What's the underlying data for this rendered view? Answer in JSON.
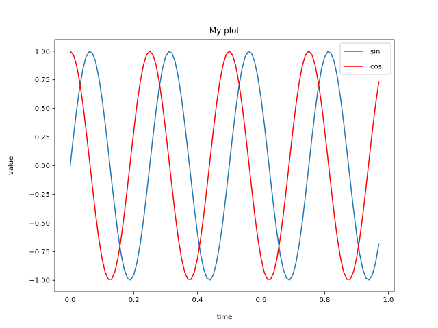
{
  "chart_data": {
    "type": "line",
    "title": "My plot",
    "xlabel": "time",
    "ylabel": "value",
    "xlim": [
      -0.0485,
      1.0185
    ],
    "ylim": [
      -1.1,
      1.1
    ],
    "xticks": [
      0.0,
      0.2,
      0.4,
      0.6,
      0.8,
      1.0
    ],
    "xtick_labels": [
      "0.0",
      "0.2",
      "0.4",
      "0.6",
      "0.8",
      "1.0"
    ],
    "yticks": [
      -1.0,
      -0.75,
      -0.5,
      -0.25,
      0.0,
      0.25,
      0.5,
      0.75,
      1.0
    ],
    "ytick_labels": [
      "−1.00",
      "−0.75",
      "−0.50",
      "−0.25",
      "0.00",
      "0.25",
      "0.50",
      "0.75",
      "1.00"
    ],
    "grid": false,
    "legend_position": "upper right",
    "x": [
      0.0,
      0.01,
      0.02,
      0.03,
      0.04,
      0.05,
      0.06,
      0.07,
      0.08,
      0.09,
      0.1,
      0.11,
      0.12,
      0.13,
      0.14,
      0.15,
      0.16,
      0.17,
      0.18,
      0.19,
      0.2,
      0.21,
      0.22,
      0.23,
      0.24,
      0.25,
      0.26,
      0.27,
      0.28,
      0.29,
      0.3,
      0.31,
      0.32,
      0.33,
      0.34,
      0.35,
      0.36,
      0.37,
      0.38,
      0.39,
      0.4,
      0.41,
      0.42,
      0.43,
      0.44,
      0.45,
      0.46,
      0.47,
      0.48,
      0.49,
      0.5,
      0.51,
      0.52,
      0.53,
      0.54,
      0.55,
      0.56,
      0.57,
      0.58,
      0.59,
      0.6,
      0.61,
      0.62,
      0.63,
      0.64,
      0.65,
      0.66,
      0.67,
      0.68,
      0.69,
      0.7,
      0.71,
      0.72,
      0.73,
      0.74,
      0.75,
      0.76,
      0.77,
      0.78,
      0.79,
      0.8,
      0.81,
      0.82,
      0.83,
      0.84,
      0.85,
      0.86,
      0.87,
      0.88,
      0.89,
      0.9,
      0.91,
      0.92,
      0.93,
      0.94,
      0.95,
      0.96,
      0.97
    ],
    "series": [
      {
        "name": "sin",
        "color": "#1f77b4",
        "values": [
          0.0,
          0.249,
          0.482,
          0.685,
          0.844,
          0.951,
          0.998,
          0.982,
          0.905,
          0.771,
          0.588,
          0.368,
          0.125,
          -0.125,
          -0.368,
          -0.588,
          -0.771,
          -0.905,
          -0.982,
          -0.998,
          -0.951,
          -0.844,
          -0.685,
          -0.482,
          -0.249,
          0.0,
          0.249,
          0.482,
          0.685,
          0.844,
          0.951,
          0.998,
          0.982,
          0.905,
          0.771,
          0.588,
          0.368,
          0.125,
          -0.125,
          -0.368,
          -0.588,
          -0.771,
          -0.905,
          -0.982,
          -0.998,
          -0.951,
          -0.844,
          -0.685,
          -0.482,
          -0.249,
          0.0,
          0.249,
          0.482,
          0.685,
          0.844,
          0.951,
          0.998,
          0.982,
          0.905,
          0.771,
          0.588,
          0.368,
          0.125,
          -0.125,
          -0.368,
          -0.588,
          -0.771,
          -0.905,
          -0.982,
          -0.998,
          -0.951,
          -0.844,
          -0.685,
          -0.482,
          -0.249,
          0.0,
          0.249,
          0.482,
          0.685,
          0.844,
          0.951,
          0.998,
          0.982,
          0.905,
          0.771,
          0.588,
          0.368,
          0.125,
          -0.125,
          -0.368,
          -0.588,
          -0.771,
          -0.905,
          -0.982,
          -0.998,
          -0.951,
          -0.844,
          -0.685
        ]
      },
      {
        "name": "cos",
        "color": "#ff0000",
        "values": [
          1.0,
          0.969,
          0.876,
          0.729,
          0.536,
          0.309,
          0.063,
          -0.187,
          -0.426,
          -0.637,
          -0.809,
          -0.93,
          -0.992,
          -0.992,
          -0.93,
          -0.809,
          -0.637,
          -0.426,
          -0.187,
          0.063,
          0.309,
          0.536,
          0.729,
          0.876,
          0.969,
          1.0,
          0.969,
          0.876,
          0.729,
          0.536,
          0.309,
          0.063,
          -0.187,
          -0.426,
          -0.637,
          -0.809,
          -0.93,
          -0.992,
          -0.992,
          -0.93,
          -0.809,
          -0.637,
          -0.426,
          -0.187,
          0.063,
          0.309,
          0.536,
          0.729,
          0.876,
          0.969,
          1.0,
          0.969,
          0.876,
          0.729,
          0.536,
          0.309,
          0.063,
          -0.187,
          -0.426,
          -0.637,
          -0.809,
          -0.93,
          -0.992,
          -0.992,
          -0.93,
          -0.809,
          -0.637,
          -0.426,
          -0.187,
          0.063,
          0.309,
          0.536,
          0.729,
          0.876,
          0.969,
          1.0,
          0.969,
          0.876,
          0.729,
          0.536,
          0.309,
          0.063,
          -0.187,
          -0.426,
          -0.637,
          -0.809,
          -0.93,
          -0.992,
          -0.992,
          -0.93,
          -0.809,
          -0.637,
          -0.426,
          -0.187,
          0.063,
          0.309,
          0.536,
          0.729
        ]
      }
    ]
  }
}
